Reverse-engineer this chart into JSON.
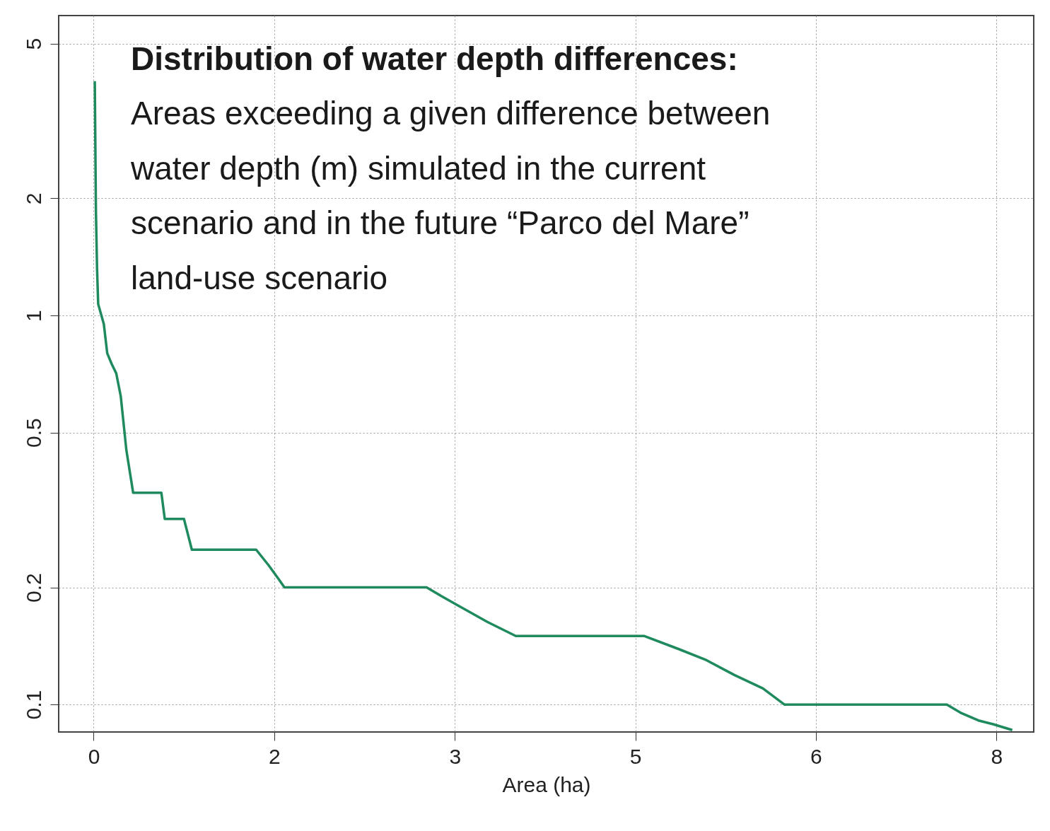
{
  "chart_data": {
    "type": "line",
    "title": "Distribution of water depth differences:",
    "subtitle": "Areas exceeding a given difference between water depth (m) simulated in the current scenario and in the future “Parco del Mare” land-use scenario",
    "xlabel": "Area (ha)",
    "x": [
      0.01,
      0.02,
      0.03,
      0.04,
      0.09,
      0.12,
      0.16,
      0.2,
      0.24,
      0.29,
      0.35,
      0.6,
      0.63,
      0.8,
      0.87,
      1.44,
      1.55,
      1.64,
      1.69,
      2.95,
      3.08,
      3.21,
      3.49,
      3.74,
      4.88,
      5.18,
      5.43,
      5.68,
      5.93,
      6.12,
      7.56,
      7.69,
      7.84,
      7.97,
      8.14
    ],
    "series": [
      {
        "color": "#1f8a5e",
        "values": [
          4.0,
          1.85,
          1.32,
          1.07,
          0.95,
          0.8,
          0.75,
          0.71,
          0.62,
          0.45,
          0.35,
          0.35,
          0.3,
          0.3,
          0.25,
          0.25,
          0.228,
          0.21,
          0.2,
          0.2,
          0.19,
          0.181,
          0.163,
          0.15,
          0.15,
          0.139,
          0.13,
          0.119,
          0.11,
          0.1,
          0.1,
          0.095,
          0.091,
          0.089,
          0.086
        ]
      }
    ],
    "xlim": [
      -0.31,
      8.33
    ],
    "xticks": [
      0,
      {
        "value": 1.6,
        "label": "2"
      },
      {
        "value": 3.2,
        "label": "3"
      },
      {
        "value": 4.8,
        "label": "5"
      },
      {
        "value": 6.4,
        "label": "6"
      },
      8
    ],
    "ylim": [
      0.085,
      5.9
    ],
    "yticks": [
      0.1,
      0.2,
      0.5,
      1,
      2,
      5
    ],
    "log": true,
    "grid": true,
    "line_style": "solid"
  }
}
